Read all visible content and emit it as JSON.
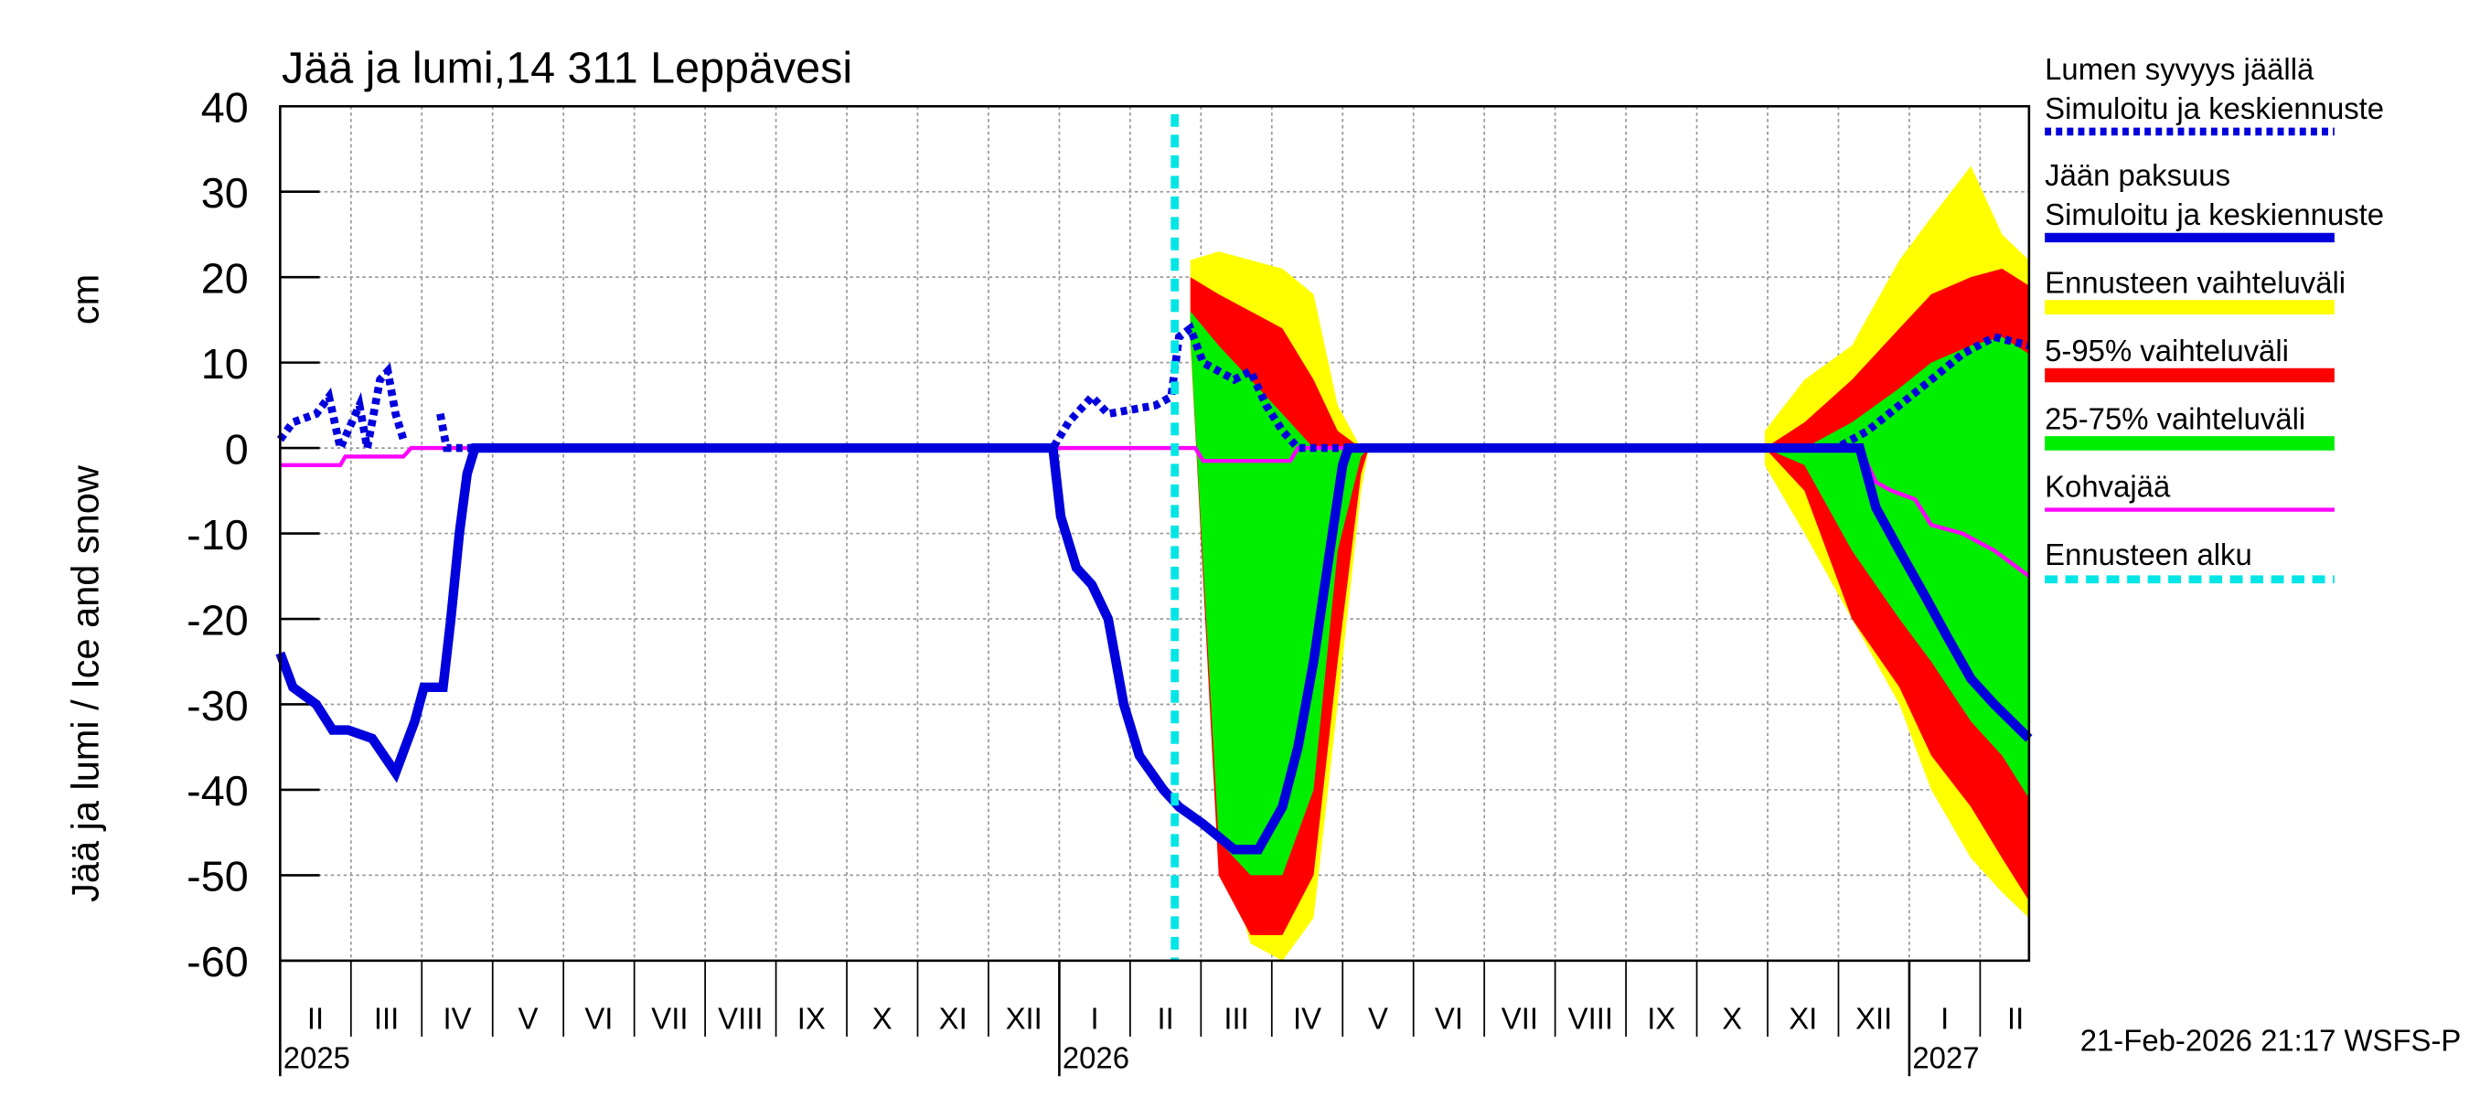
{
  "chart_data": {
    "type": "line",
    "title": "Jää ja lumi,14 311 Leppävesi",
    "ylabel": "Jää ja lumi / Ice and snow",
    "yunit": "cm",
    "footer": "21-Feb-2026 21:17 WSFS-P",
    "xlim": [
      1,
      25.69
    ],
    "ylim": [
      -60,
      40
    ],
    "yticks": [
      -60,
      -50,
      -40,
      -30,
      -20,
      -10,
      0,
      10,
      20,
      30,
      40
    ],
    "xticks": [
      2,
      3,
      4,
      5,
      6,
      7,
      8,
      9,
      10,
      11,
      12,
      13,
      14,
      15,
      16,
      17,
      18,
      19,
      20,
      21,
      22,
      23,
      24,
      25
    ],
    "grid": true,
    "month_labels": [
      "II",
      "III",
      "IV",
      "V",
      "VI",
      "VII",
      "VIII",
      "IX",
      "X",
      "XI",
      "XII",
      "I",
      "II",
      "III",
      "IV",
      "V",
      "VI",
      "VII",
      "VIII",
      "IX",
      "X",
      "XI",
      "XII",
      "I",
      "II"
    ],
    "years": [
      {
        "label": "2025",
        "x": 1
      },
      {
        "label": "2026",
        "x": 12
      },
      {
        "label": "2027",
        "x": 24
      }
    ],
    "series": [
      {
        "name": "Lumen syvyys jäällä",
        "subname": "Simuloitu ja keskiennuste",
        "color": "#0000dd",
        "dashed": true,
        "x": [
          1.0,
          1.18,
          1.51,
          1.69,
          1.85,
          2.12,
          2.23,
          2.41,
          2.52,
          2.63,
          2.74,
          null,
          3.26,
          3.35,
          11.91,
          12.13,
          12.46,
          12.69,
          13.36,
          13.58,
          13.69,
          13.85,
          14.03,
          14.47,
          14.7,
          14.92,
          15.15,
          15.37,
          22.97,
          23.41,
          23.86,
          24.31,
          24.75,
          25.2,
          25.69
        ],
        "values": [
          1,
          3,
          4,
          6,
          0,
          5,
          0,
          8,
          9,
          4,
          1,
          null,
          4,
          0,
          0,
          3,
          6,
          4,
          5,
          6,
          13,
          14,
          10,
          8,
          9,
          5,
          2,
          0,
          0,
          2,
          5,
          8,
          11,
          13,
          12
        ]
      },
      {
        "name": "Jään paksuus",
        "subname": "Simuloitu ja keskiennuste",
        "color": "#0000dd",
        "dashed": false,
        "x": [
          1.0,
          1.18,
          1.51,
          1.74,
          1.96,
          2.3,
          2.63,
          2.9,
          3.03,
          3.3,
          3.41,
          3.53,
          3.64,
          3.75,
          11.91,
          12.02,
          12.24,
          12.46,
          12.69,
          12.91,
          13.13,
          13.47,
          13.69,
          14.03,
          14.47,
          14.81,
          15.15,
          15.37,
          15.59,
          15.82,
          16.0,
          16.08,
          23.3,
          23.53,
          23.86,
          24.2,
          24.53,
          24.87,
          25.2,
          25.69
        ],
        "values": [
          -24,
          -28,
          -30,
          -33,
          -33,
          -34,
          -38,
          -32,
          -28,
          -28,
          -20,
          -10,
          -3,
          0,
          0,
          -8,
          -14,
          -16,
          -20,
          -30,
          -36,
          -40,
          -42,
          -44,
          -47,
          -47,
          -42,
          -35,
          -25,
          -12,
          -2,
          0,
          0,
          -7,
          -12,
          -17,
          -22,
          -27,
          -30,
          -34
        ]
      },
      {
        "name": "Kohvajää",
        "color": "#ff00ff",
        "dashed": false,
        "x": [
          1.0,
          1.85,
          1.92,
          2.74,
          2.85,
          13.92,
          14.03,
          15.26,
          15.37,
          23.3,
          23.53,
          23.75,
          24.08,
          24.31,
          24.75,
          25.2,
          25.69
        ],
        "values": [
          -2,
          -2,
          -1,
          -1,
          0,
          0,
          -1.5,
          -1.5,
          0,
          0,
          -4,
          -5,
          -6,
          -9,
          -10,
          -12,
          -15
        ]
      }
    ],
    "band_x": [
      13.85,
      14.25,
      14.7,
      15.15,
      15.59,
      15.93,
      16.26,
      16.37,
      null,
      21.96,
      22.52,
      23.19,
      23.86,
      24.31,
      24.87,
      25.31,
      25.69
    ],
    "bands": [
      {
        "name": "Ennusteen vaihteluväli",
        "color": "#ffff00",
        "upper": [
          22,
          23,
          22,
          21,
          18,
          5,
          0,
          0,
          null,
          2,
          8,
          12,
          22,
          27,
          33,
          25,
          22
        ],
        "lower": [
          12,
          -45,
          -58,
          -60,
          -55,
          -30,
          -5,
          0,
          null,
          -2,
          -10,
          -20,
          -30,
          -40,
          -48,
          -52,
          -55
        ]
      },
      {
        "name": "5-95% vaihteluväli",
        "color": "#ff0000",
        "upper": [
          20,
          18,
          16,
          14,
          8,
          2,
          0,
          0,
          null,
          0,
          3,
          8,
          14,
          18,
          20,
          21,
          19
        ],
        "lower": [
          13,
          -50,
          -57,
          -57,
          -50,
          -25,
          -3,
          0,
          null,
          0,
          -5,
          -20,
          -28,
          -36,
          -42,
          -48,
          -53
        ]
      },
      {
        "name": "25-75% vaihteluväli",
        "color": "#00ee00",
        "upper": [
          16,
          12,
          8,
          4,
          0,
          0,
          0,
          0,
          null,
          0,
          0,
          3,
          7,
          10,
          12,
          13,
          11
        ],
        "lower": [
          13,
          -46,
          -50,
          -50,
          -40,
          -12,
          -1,
          0,
          null,
          0,
          -2,
          -12,
          -20,
          -25,
          -32,
          -36,
          -41
        ]
      }
    ],
    "forecast_start": {
      "name": "Ennusteen alku",
      "x": 13.63,
      "color": "#00e5e5"
    }
  }
}
